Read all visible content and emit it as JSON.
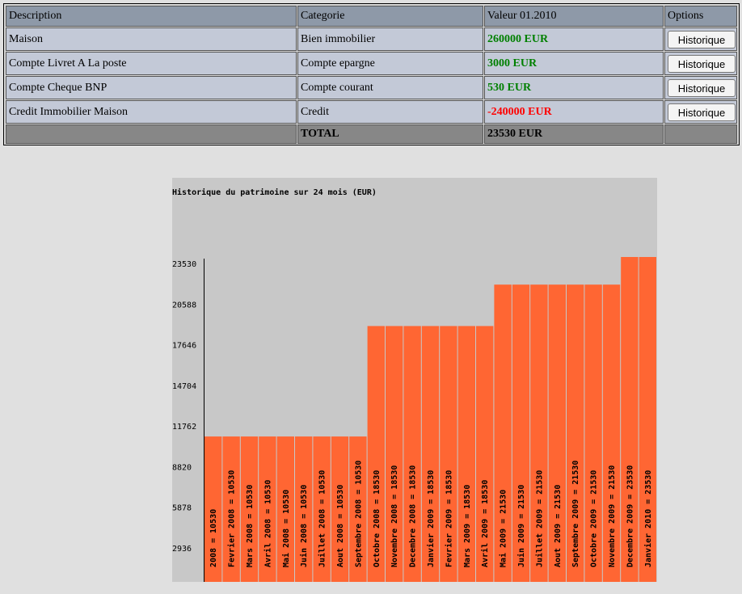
{
  "table": {
    "headers": [
      "Description",
      "Categorie",
      "Valeur 01.2010",
      "Options"
    ],
    "rows": [
      [
        "Maison",
        "Bien immobilier",
        "260000 EUR",
        "Historique"
      ],
      [
        "Compte Livret A La poste",
        "Compte epargne",
        "3000 EUR",
        "Historique"
      ],
      [
        "Compte Cheque BNP",
        "Compte courant",
        "530 EUR",
        "Historique"
      ],
      [
        "Credit Immobilier Maison",
        "Credit",
        "-240000 EUR",
        "Historique"
      ]
    ],
    "total": {
      "label": "TOTAL",
      "value": "23530 EUR"
    }
  },
  "chart_data": {
    "type": "bar",
    "title": "Historique du patrimoine sur 24 mois (EUR)",
    "categories": [
      "2008 = 10530",
      "Fevrier 2008 = 10530",
      "Mars 2008 = 10530",
      "Avril 2008 = 10530",
      "Mai 2008 = 10530",
      "Juin 2008 = 10530",
      "Juillet 2008 = 10530",
      "Aout 2008 = 10530",
      "Septembre 2008 = 10530",
      "Octobre 2008 = 18530",
      "Novembre 2008 = 18530",
      "Decembre 2008 = 18530",
      "Janvier 2009 = 18530",
      "Fevrier 2009 = 18530",
      "Mars 2009 = 18530",
      "Avril 2009 = 18530",
      "Mai 2009 = 21530",
      "Juin 2009 = 21530",
      "Juillet 2009 = 21530",
      "Aout 2009 = 21530",
      "Septembre 2009 = 21530",
      "Octobre 2009 = 21530",
      "Novembre 2009 = 21530",
      "Decembre 2009 = 23530",
      "Janvier 2010 = 23530"
    ],
    "values": [
      10530,
      10530,
      10530,
      10530,
      10530,
      10530,
      10530,
      10530,
      10530,
      18530,
      18530,
      18530,
      18530,
      18530,
      18530,
      18530,
      21530,
      21530,
      21530,
      21530,
      21530,
      21530,
      21530,
      23530,
      23530
    ],
    "color": "#ff6633",
    "ylim": [
      0,
      23530
    ],
    "yticks": [
      2936,
      5878,
      8820,
      11762,
      14704,
      17646,
      20588,
      23530
    ]
  }
}
